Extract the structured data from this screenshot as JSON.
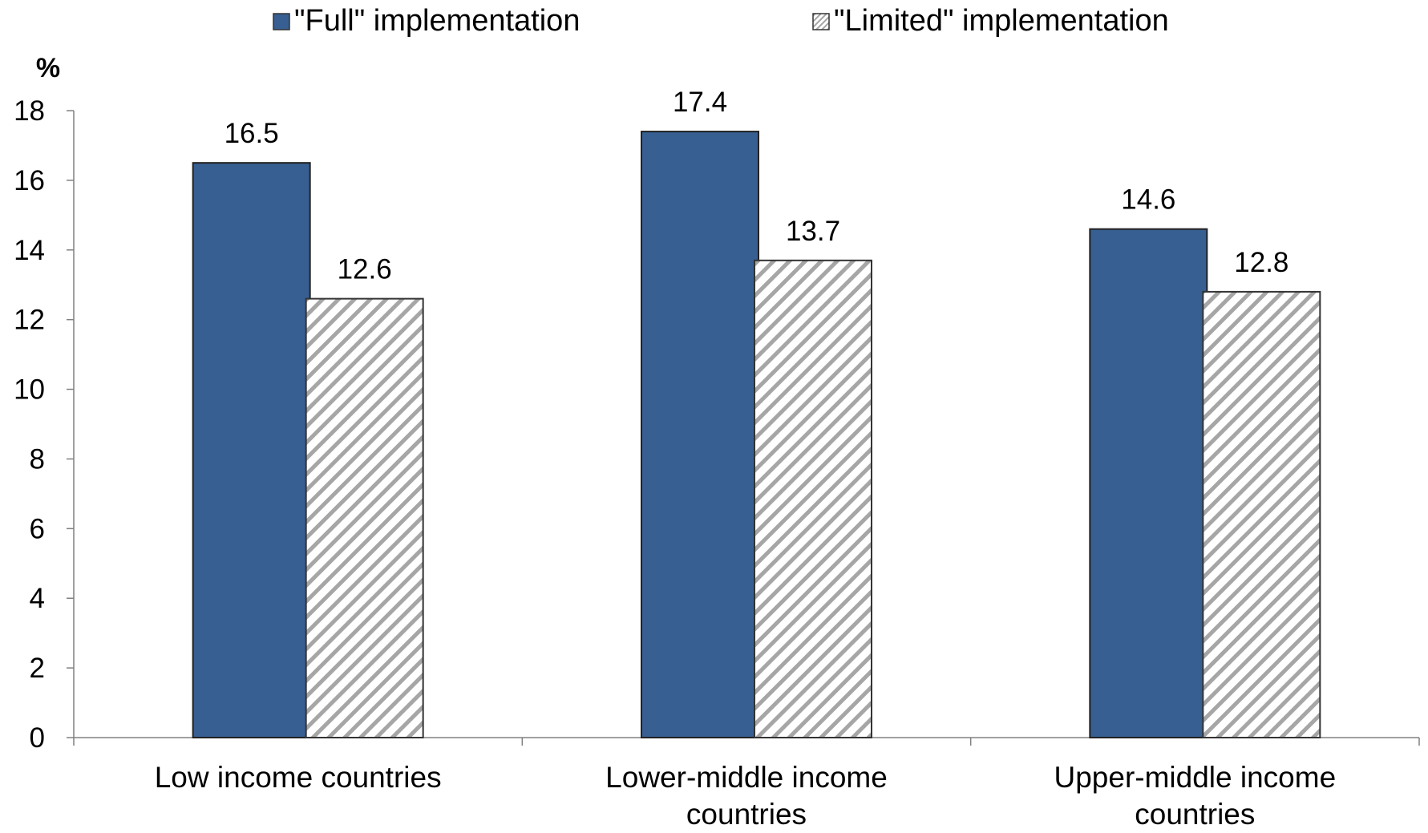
{
  "chart_data": {
    "type": "bar",
    "title": "",
    "xlabel": "",
    "ylabel": "%",
    "ylim": [
      0,
      18
    ],
    "yticks": [
      0,
      2,
      4,
      6,
      8,
      10,
      12,
      14,
      16,
      18
    ],
    "grid": false,
    "legend_position": "top",
    "categories": [
      [
        "Low income countries"
      ],
      [
        "Lower-middle income",
        "countries"
      ],
      [
        "Upper-middle income",
        "countries"
      ]
    ],
    "series": [
      {
        "name": "\"Full\" implementation",
        "values": [
          16.5,
          17.4,
          14.6
        ],
        "labels": [
          "16.5",
          "17.4",
          "14.6"
        ],
        "fill": "solid",
        "color": "#375f91"
      },
      {
        "name": "\"Limited\" implementation",
        "values": [
          12.6,
          13.7,
          12.8
        ],
        "labels": [
          "12.6",
          "13.7",
          "12.8"
        ],
        "fill": "diagonal-hatch",
        "color": "#a6a6a6"
      }
    ]
  }
}
